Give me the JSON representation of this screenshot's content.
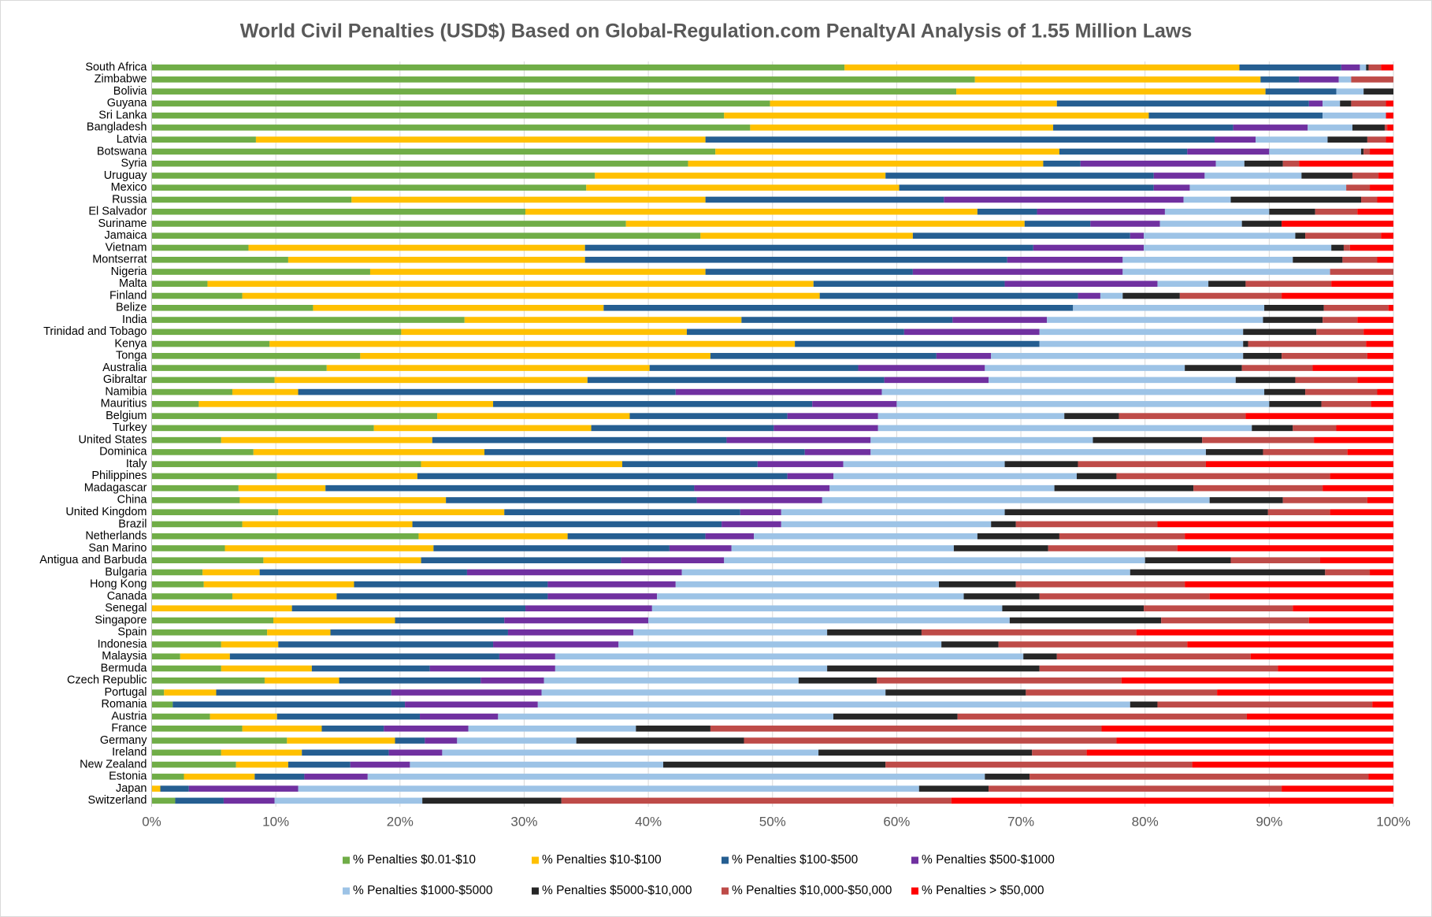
{
  "chart_data": {
    "type": "stacked_bar_horizontal",
    "title": "World Civil Penalties (USD$) Based on Global-Regulation.com PenaltyAI Analysis of 1.55 Million Laws",
    "categories": [
      "South Africa",
      "Zimbabwe",
      "Bolivia",
      "Guyana",
      "Sri Lanka",
      "Bangladesh",
      "Latvia",
      "Botswana",
      "Syria",
      "Uruguay",
      "Mexico",
      "Russia",
      "El Salvador",
      "Suriname",
      "Jamaica",
      "Vietnam",
      "Montserrat",
      "Nigeria",
      "Malta",
      "Finland",
      "Belize",
      "India",
      "Trinidad and Tobago",
      "Kenya",
      "Tonga",
      "Australia",
      "Gibraltar",
      "Namibia",
      "Mauritius",
      "Belgium",
      "Turkey",
      "United States",
      "Dominica",
      "Italy",
      "Philippines",
      "Madagascar",
      "China",
      "United Kingdom",
      "Brazil",
      "Netherlands",
      "San Marino",
      "Antigua and Barbuda",
      "Bulgaria",
      "Hong Kong",
      "Canada",
      "Senegal",
      "Singapore",
      "Spain",
      "Indonesia",
      "Malaysia",
      "Bermuda",
      "Czech Republic",
      "Portugal",
      "Romania",
      "Austria",
      "France",
      "Germany",
      "Ireland",
      "New Zealand",
      "Estonia",
      "Japan",
      "Switzerland"
    ],
    "series": [
      {
        "name": "% Penalties $0.01-$10",
        "color": "#70ad47",
        "values": [
          55.8,
          66.3,
          64.8,
          49.8,
          46.1,
          48.2,
          8.4,
          45.4,
          43.2,
          35.7,
          35.0,
          16.1,
          30.1,
          38.2,
          44.2,
          7.8,
          11.0,
          17.6,
          4.5,
          7.3,
          13.0,
          25.2,
          20.1,
          9.5,
          16.8,
          14.1,
          9.9,
          6.5,
          3.8,
          23.0,
          17.9,
          5.6,
          8.2,
          21.7,
          10.1,
          7.0,
          7.1,
          10.2,
          7.3,
          21.5,
          5.9,
          9.0,
          4.1,
          4.2,
          6.5,
          0,
          9.8,
          9.3,
          5.6,
          2.3,
          5.6,
          9.1,
          1.0,
          1.7,
          4.7,
          7.3,
          10.9,
          5.6,
          6.8,
          2.6,
          0,
          1.9
        ]
      },
      {
        "name": "% Penalties $10-$100",
        "color": "#ffc000",
        "values": [
          31.8,
          23.0,
          24.9,
          23.1,
          34.2,
          24.4,
          36.2,
          27.7,
          28.6,
          23.4,
          25.2,
          28.5,
          36.4,
          32.1,
          17.1,
          27.1,
          23.9,
          27.0,
          48.8,
          46.5,
          23.4,
          22.3,
          23.0,
          42.3,
          28.2,
          26.0,
          25.2,
          5.3,
          23.7,
          15.5,
          17.5,
          17.0,
          18.6,
          16.2,
          11.3,
          7.0,
          16.6,
          18.2,
          13.7,
          12.0,
          16.8,
          12.7,
          4.6,
          12.1,
          8.4,
          11.3,
          9.8,
          5.1,
          4.6,
          4.0,
          7.3,
          6.0,
          4.2,
          0,
          5.4,
          6.4,
          8.7,
          6.5,
          4.2,
          5.7,
          0.7,
          0
        ]
      },
      {
        "name": "% Penalties $100-$500",
        "color": "#255e91",
        "values": [
          8.2,
          3.1,
          5.7,
          20.3,
          14.0,
          14.5,
          41.0,
          10.3,
          3.0,
          21.6,
          20.5,
          19.2,
          4.8,
          5.3,
          17.5,
          36.1,
          34.0,
          16.7,
          15.4,
          20.8,
          37.8,
          17.0,
          17.5,
          19.7,
          18.2,
          16.8,
          23.9,
          30.4,
          25.7,
          12.7,
          14.7,
          23.7,
          25.8,
          10.9,
          29.8,
          29.7,
          20.2,
          19.0,
          24.9,
          11.1,
          19.0,
          16.1,
          16.7,
          15.6,
          17.0,
          18.8,
          8.8,
          14.3,
          17.3,
          21.7,
          9.5,
          11.4,
          14.1,
          18.7,
          11.5,
          5.0,
          2.4,
          7.0,
          5.0,
          4.0,
          2.3,
          3.9
        ]
      },
      {
        "name": "% Penalties $500-$1000",
        "color": "#7030a0",
        "values": [
          1.5,
          3.2,
          0,
          1.1,
          0,
          6.0,
          3.3,
          6.6,
          10.9,
          4.1,
          2.9,
          19.3,
          10.3,
          5.6,
          1.1,
          8.9,
          9.3,
          16.9,
          12.3,
          1.8,
          0,
          7.6,
          10.9,
          0,
          4.4,
          10.2,
          8.4,
          16.6,
          6.8,
          7.3,
          8.4,
          11.6,
          5.3,
          6.9,
          3.7,
          10.9,
          10.1,
          3.3,
          4.8,
          3.9,
          5.0,
          8.3,
          17.3,
          10.3,
          8.8,
          10.2,
          11.6,
          10.1,
          10.1,
          4.5,
          10.1,
          5.1,
          12.1,
          10.7,
          6.3,
          6.8,
          2.6,
          4.3,
          4.8,
          5.1,
          8.8,
          4.1
        ]
      },
      {
        "name": "% Penalties $1000-$5000",
        "color": "#9dc3e6",
        "values": [
          0.5,
          1.0,
          2.2,
          1.4,
          5.1,
          3.6,
          5.8,
          7.4,
          2.3,
          7.8,
          12.6,
          3.8,
          8.4,
          6.6,
          12.2,
          15.1,
          13.7,
          16.7,
          4.1,
          1.8,
          15.4,
          17.4,
          16.4,
          16.4,
          20.3,
          16.1,
          19.9,
          30.8,
          30.0,
          15.0,
          30.1,
          17.9,
          27.0,
          13.0,
          19.6,
          18.1,
          31.2,
          18.0,
          16.9,
          18.0,
          17.9,
          33.9,
          36.1,
          21.2,
          24.7,
          28.2,
          29.1,
          15.6,
          26.0,
          37.7,
          21.9,
          20.5,
          27.7,
          47.7,
          27.0,
          13.5,
          9.6,
          30.3,
          20.4,
          49.7,
          50.0,
          11.9
        ]
      },
      {
        "name": "% Penalties $5000-$10,000",
        "color": "#262626",
        "values": [
          0.2,
          0,
          2.4,
          0.9,
          0,
          2.6,
          3.2,
          0.2,
          3.1,
          4.1,
          0,
          10.5,
          3.7,
          3.2,
          0.8,
          1.0,
          4.0,
          0,
          3.0,
          4.6,
          4.8,
          4.8,
          5.9,
          0.4,
          3.1,
          4.6,
          4.8,
          3.3,
          4.2,
          4.4,
          3.3,
          8.8,
          4.6,
          5.9,
          3.2,
          11.2,
          5.9,
          21.2,
          2.0,
          6.6,
          7.6,
          6.9,
          15.7,
          6.2,
          6.1,
          11.4,
          12.2,
          7.6,
          4.6,
          2.7,
          17.1,
          6.3,
          11.3,
          2.2,
          10.0,
          6.0,
          13.5,
          17.2,
          17.9,
          3.6,
          5.6,
          11.2
        ]
      },
      {
        "name": "% Penalties $10,000-$50,000",
        "color": "#be4b48",
        "values": [
          1.0,
          3.4,
          0,
          2.8,
          0,
          0.2,
          1.5,
          0.5,
          1.3,
          2.1,
          1.9,
          1.3,
          3.4,
          0,
          6.1,
          0.5,
          2.8,
          5.1,
          6.9,
          8.2,
          5.2,
          2.8,
          3.8,
          9.5,
          6.9,
          5.7,
          5.0,
          5.8,
          4.0,
          10.2,
          3.5,
          9.0,
          6.8,
          10.3,
          17.2,
          10.4,
          6.8,
          5.0,
          11.4,
          10.1,
          10.4,
          7.2,
          3.6,
          13.6,
          13.7,
          12.0,
          11.9,
          17.3,
          15.2,
          15.6,
          19.2,
          19.7,
          15.4,
          17.3,
          23.3,
          31.5,
          30.0,
          4.4,
          24.7,
          27.3,
          23.6,
          31.4
        ]
      },
      {
        "name": "% Penalties > $50,000",
        "color": "#ff0000",
        "values": [
          1.0,
          0,
          0,
          0.6,
          0.6,
          0.5,
          0.6,
          1.9,
          7.6,
          1.2,
          1.9,
          1.3,
          2.9,
          9.0,
          1.0,
          3.5,
          1.3,
          0,
          5.0,
          9.0,
          0.4,
          2.9,
          2.4,
          2.2,
          2.1,
          6.5,
          2.9,
          1.3,
          1.8,
          11.9,
          4.6,
          6.4,
          3.7,
          15.1,
          5.1,
          5.7,
          2.1,
          5.1,
          19.0,
          16.8,
          17.4,
          5.9,
          1.9,
          16.8,
          14.8,
          8.1,
          6.8,
          20.7,
          16.6,
          11.5,
          9.3,
          21.9,
          14.2,
          1.7,
          11.8,
          23.5,
          22.3,
          24.7,
          16.2,
          2.0,
          9.0,
          35.6
        ]
      }
    ],
    "xlim": [
      0,
      100
    ],
    "xticks": [
      {
        "value": 0,
        "label": "0%"
      },
      {
        "value": 10,
        "label": "10%"
      },
      {
        "value": 20,
        "label": "20%"
      },
      {
        "value": 30,
        "label": "30%"
      },
      {
        "value": 40,
        "label": "40%"
      },
      {
        "value": 50,
        "label": "50%"
      },
      {
        "value": 60,
        "label": "60%"
      },
      {
        "value": 70,
        "label": "70%"
      },
      {
        "value": 80,
        "label": "80%"
      },
      {
        "value": 90,
        "label": "90%"
      },
      {
        "value": 100,
        "label": "100%"
      }
    ],
    "grid": true,
    "legend": "bottom"
  }
}
